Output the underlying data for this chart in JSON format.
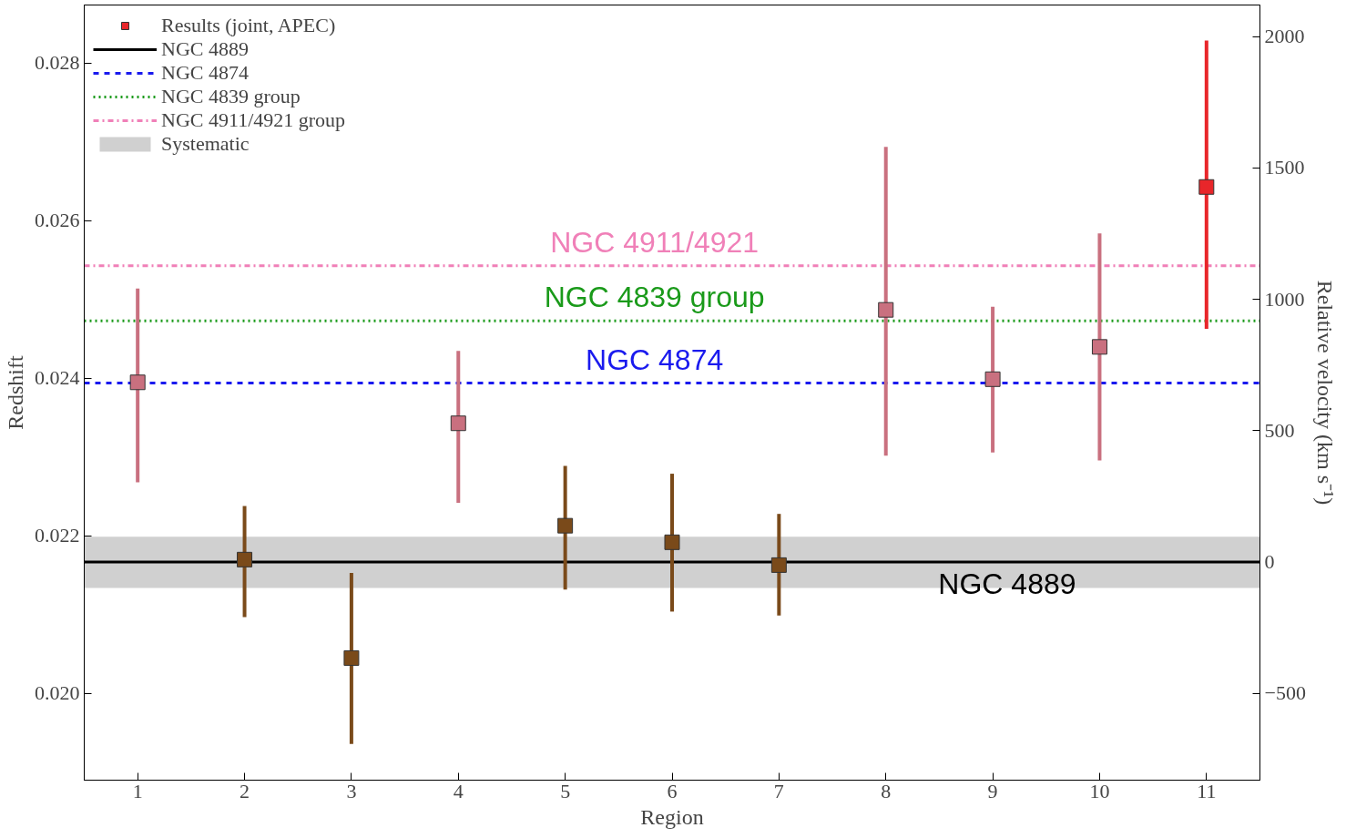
{
  "chart_data": {
    "type": "scatter",
    "x": [
      1,
      2,
      3,
      4,
      5,
      6,
      7,
      8,
      9,
      10,
      11
    ],
    "xlabel": "Region",
    "ylabel": "Redshift",
    "y2label": "Relative velocity (km s⁻¹)",
    "xlim": [
      0.5,
      11.5
    ],
    "xticks": [
      1,
      2,
      3,
      4,
      5,
      6,
      7,
      8,
      9,
      10,
      11
    ],
    "ylim": [
      0.0189,
      0.02874
    ],
    "yticks": [
      {
        "value": 0.02,
        "label": "0.020"
      },
      {
        "value": 0.022,
        "label": "0.022"
      },
      {
        "value": 0.024,
        "label": "0.024"
      },
      {
        "value": 0.026,
        "label": "0.026"
      },
      {
        "value": 0.028,
        "label": "0.028"
      }
    ],
    "y2lim": [
      -830,
      2120
    ],
    "y2ticks": [
      -500,
      0,
      500,
      1000,
      1500,
      2000
    ],
    "series": [
      {
        "name": "Results (joint, APEC)",
        "color": "#e8262a",
        "colors": [
          "#c9707f",
          "#7a4a1a",
          "#7a4a1a",
          "#c9707f",
          "#7a4a1a",
          "#7a4a1a",
          "#7a4a1a",
          "#c9707f",
          "#c9707f",
          "#c9707f",
          "#e8262a"
        ],
        "values": [
          0.02395,
          0.0217,
          0.02045,
          0.02343,
          0.02213,
          0.02192,
          0.02163,
          0.02487,
          0.02399,
          0.0244,
          0.02643
        ],
        "errors": [
          [
            0.02268,
            0.02514
          ],
          [
            0.02097,
            0.02238
          ],
          [
            0.01936,
            0.02153
          ],
          [
            0.02242,
            0.02435
          ],
          [
            0.02132,
            0.02289
          ],
          [
            0.02104,
            0.02279
          ],
          [
            0.02099,
            0.02228
          ],
          [
            0.02302,
            0.02694
          ],
          [
            0.02306,
            0.02491
          ],
          [
            0.02296,
            0.02584
          ],
          [
            0.02463,
            0.02829
          ]
        ]
      }
    ],
    "ref_lines": [
      {
        "axis": "y",
        "value": 0.02167,
        "label": "NGC 4889",
        "color": "#000000",
        "line_style": "solid"
      },
      {
        "axis": "y",
        "value": 0.02394,
        "label": "NGC 4874",
        "color": "#1a1aee",
        "line_style": "dashed"
      },
      {
        "axis": "y",
        "value": 0.02473,
        "label": "NGC 4839 group",
        "color": "#1a9a1a",
        "line_style": "dotted"
      },
      {
        "axis": "y",
        "value": 0.02543,
        "label": "NGC 4911/4921 group",
        "color": "#f080b8",
        "line_style": "dashdot"
      }
    ],
    "bands": [
      {
        "axis": "y",
        "from": 0.02134,
        "to": 0.02199,
        "label": "Systematic",
        "color": "#c8c8c8"
      }
    ],
    "annotations": [
      "NGC 4889",
      "NGC 4874",
      "NGC 4839 group",
      "NGC 4911/4921"
    ],
    "marker": "square",
    "legend": "top left",
    "grid": false
  }
}
